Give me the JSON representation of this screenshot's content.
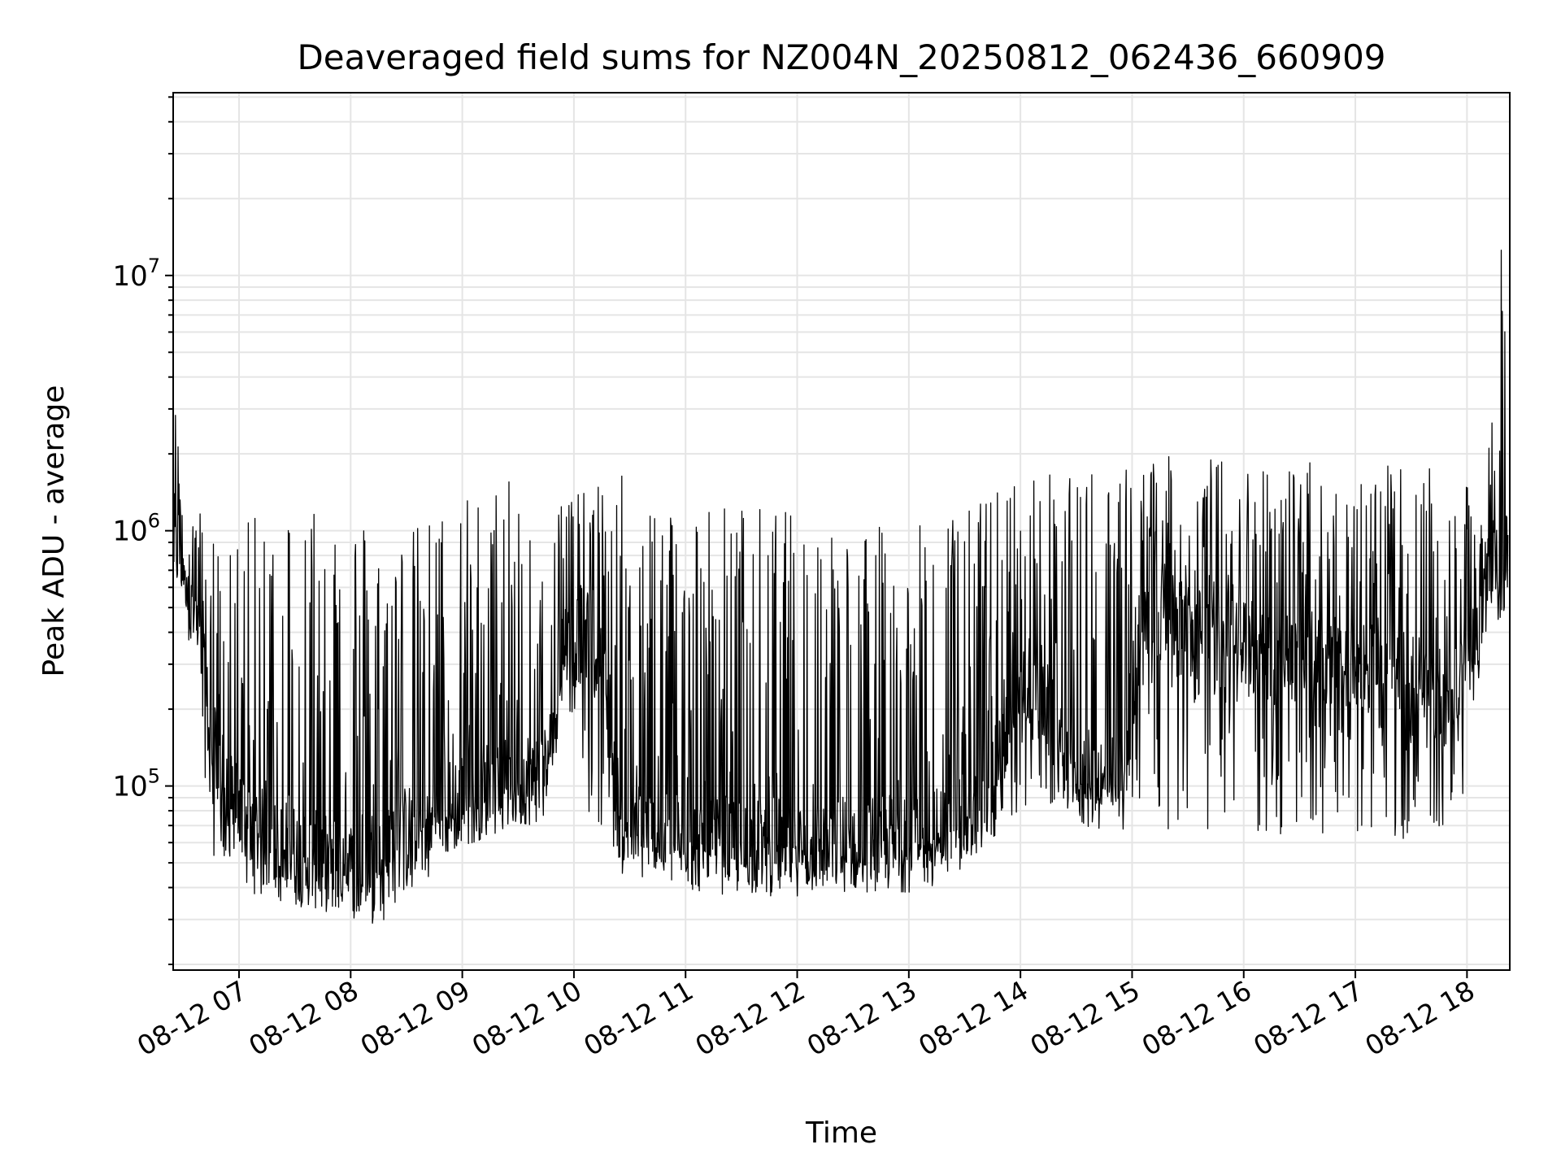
{
  "chart_data": {
    "type": "line",
    "title": "Deaveraged field sums for NZ004N_20250812_062436_660909",
    "xlabel": "Time",
    "ylabel": "Peak ADU - average",
    "yscale": "log",
    "ylim": [
      19000,
      52000000
    ],
    "xlim": [
      "2025-08-12 06:24:36",
      "2025-08-12 18:23:00"
    ],
    "grid": true,
    "legend": "none",
    "line_color": "#000000",
    "x_tick_labels": [
      "08-12 07",
      "08-12 08",
      "08-12 09",
      "08-12 10",
      "08-12 11",
      "08-12 12",
      "08-12 13",
      "08-12 14",
      "08-12 15",
      "08-12 16",
      "08-12 17",
      "08-12 18"
    ],
    "x_tick_times": [
      "2025-08-12 07:00",
      "2025-08-12 08:00",
      "2025-08-12 09:00",
      "2025-08-12 10:00",
      "2025-08-12 11:00",
      "2025-08-12 12:00",
      "2025-08-12 13:00",
      "2025-08-12 14:00",
      "2025-08-12 15:00",
      "2025-08-12 16:00",
      "2025-08-12 17:00",
      "2025-08-12 18:00"
    ],
    "y_ticks": [
      {
        "base": "10",
        "exp": "5",
        "value": 100000
      },
      {
        "base": "10",
        "exp": "6",
        "value": 1000000
      },
      {
        "base": "10",
        "exp": "7",
        "value": 10000000
      }
    ],
    "series": [
      {
        "x": [
          "2025-08-12 06:25",
          "2025-08-12 06:30",
          "2025-08-12 06:35",
          "2025-08-12 06:40",
          "2025-08-12 06:45",
          "2025-08-12 06:50",
          "2025-08-12 07:00",
          "2025-08-12 07:15",
          "2025-08-12 07:30",
          "2025-08-12 07:45",
          "2025-08-12 08:00",
          "2025-08-12 08:15",
          "2025-08-12 08:30",
          "2025-08-12 08:45",
          "2025-08-12 09:00",
          "2025-08-12 09:15",
          "2025-08-12 09:30",
          "2025-08-12 09:45",
          "2025-08-12 09:55",
          "2025-08-12 10:05",
          "2025-08-12 10:15",
          "2025-08-12 10:25",
          "2025-08-12 10:40",
          "2025-08-12 11:00",
          "2025-08-12 11:30",
          "2025-08-12 12:00",
          "2025-08-12 12:30",
          "2025-08-12 13:00",
          "2025-08-12 13:20",
          "2025-08-12 13:40",
          "2025-08-12 13:55",
          "2025-08-12 14:10",
          "2025-08-12 14:25",
          "2025-08-12 14:40",
          "2025-08-12 14:55",
          "2025-08-12 15:05",
          "2025-08-12 15:30",
          "2025-08-12 16:00",
          "2025-08-12 16:30",
          "2025-08-12 17:00",
          "2025-08-12 17:30",
          "2025-08-12 17:50",
          "2025-08-12 18:00",
          "2025-08-12 18:10",
          "2025-08-12 18:20",
          "2025-08-12 18:22"
        ],
        "baseline": [
          900000,
          800000,
          600000,
          300000,
          150000,
          90000,
          80000,
          60000,
          55000,
          50000,
          50000,
          55000,
          65000,
          75000,
          90000,
          100000,
          105000,
          115000,
          350000,
          400000,
          300000,
          70000,
          65000,
          60000,
          58000,
          58000,
          60000,
          60000,
          65000,
          80000,
          180000,
          250000,
          110000,
          105000,
          100000,
          500000,
          400000,
          350000,
          330000,
          300000,
          260000,
          220000,
          320000,
          550000,
          750000,
          800000
        ],
        "peak": [
          3600000,
          1600000,
          1400000,
          1200000,
          1100000,
          900000,
          1000000,
          1300000,
          1500000,
          1700000,
          1300000,
          1100000,
          1000000,
          1200000,
          1400000,
          1500000,
          1600000,
          1800000,
          1500000,
          1400000,
          1600000,
          1700000,
          1500000,
          1400000,
          1300000,
          1200000,
          1100000,
          1000000,
          1200000,
          1400000,
          1600000,
          1800000,
          1600000,
          1900000,
          1800000,
          1900000,
          2000000,
          1900000,
          1900000,
          1800000,
          1800000,
          1700000,
          1500000,
          1300000,
          22000000,
          1000000
        ],
        "trough": [
          600000,
          500000,
          300000,
          150000,
          60000,
          40000,
          40000,
          36000,
          34000,
          32000,
          30000,
          28000,
          34000,
          45000,
          55000,
          65000,
          70000,
          75000,
          250000,
          80000,
          70000,
          50000,
          48000,
          45000,
          42000,
          40000,
          42000,
          45000,
          50000,
          55000,
          75000,
          80000,
          85000,
          85000,
          80000,
          70000,
          65000,
          62000,
          62000,
          62000,
          62000,
          62000,
          100000,
          450000,
          550000,
          550000
        ]
      }
    ]
  }
}
